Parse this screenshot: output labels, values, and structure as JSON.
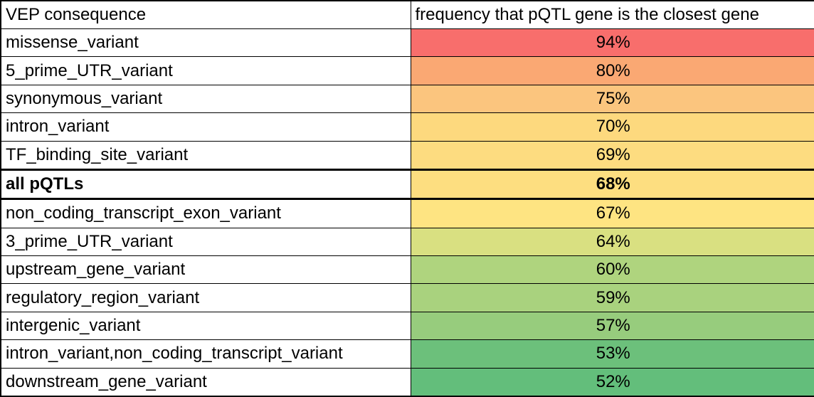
{
  "table": {
    "columns": [
      {
        "label": "VEP consequence"
      },
      {
        "label": "frequency that pQTL gene is the closest gene"
      }
    ],
    "rows": [
      {
        "consequence": "missense_variant",
        "frequency": "94%",
        "color": "#F86E6C",
        "bold": false
      },
      {
        "consequence": "5_prime_UTR_variant",
        "frequency": "80%",
        "color": "#FAA873",
        "bold": false
      },
      {
        "consequence": "synonymous_variant",
        "frequency": "75%",
        "color": "#FBC57E",
        "bold": false
      },
      {
        "consequence": "intron_variant",
        "frequency": "70%",
        "color": "#FDD97E",
        "bold": false
      },
      {
        "consequence": "TF_binding_site_variant",
        "frequency": "69%",
        "color": "#FDDC80",
        "bold": false
      },
      {
        "consequence": "all pQTLs",
        "frequency": "68%",
        "color": "#FDDE80",
        "bold": true
      },
      {
        "consequence": "non_coding_transcript_exon_variant",
        "frequency": "67%",
        "color": "#FEE482",
        "bold": false
      },
      {
        "consequence": "3_prime_UTR_variant",
        "frequency": "64%",
        "color": "#D9E081",
        "bold": false
      },
      {
        "consequence": "upstream_gene_variant",
        "frequency": "60%",
        "color": "#AFD47E",
        "bold": false
      },
      {
        "consequence": "regulatory_region_variant",
        "frequency": "59%",
        "color": "#A9D27E",
        "bold": false
      },
      {
        "consequence": "intergenic_variant",
        "frequency": "57%",
        "color": "#97CC7D",
        "bold": false
      },
      {
        "consequence": "intron_variant,non_coding_transcript_variant",
        "frequency": "53%",
        "color": "#6CC07B",
        "bold": false
      },
      {
        "consequence": "downstream_gene_variant",
        "frequency": "52%",
        "color": "#63BE7B",
        "bold": false
      }
    ]
  },
  "chart_data": {
    "type": "table",
    "title": "",
    "columns": [
      "VEP consequence",
      "frequency that pQTL gene is the closest gene"
    ],
    "categories": [
      "missense_variant",
      "5_prime_UTR_variant",
      "synonymous_variant",
      "intron_variant",
      "TF_binding_site_variant",
      "all pQTLs",
      "non_coding_transcript_exon_variant",
      "3_prime_UTR_variant",
      "upstream_gene_variant",
      "regulatory_region_variant",
      "intergenic_variant",
      "intron_variant,non_coding_transcript_variant",
      "downstream_gene_variant"
    ],
    "values": [
      94,
      80,
      75,
      70,
      69,
      68,
      67,
      64,
      60,
      59,
      57,
      53,
      52
    ],
    "value_format": "percent",
    "highlighted_row": "all pQTLs",
    "color_scale": {
      "low": "#63BE7B",
      "mid": "#FFEB84",
      "high": "#F8696B"
    }
  }
}
